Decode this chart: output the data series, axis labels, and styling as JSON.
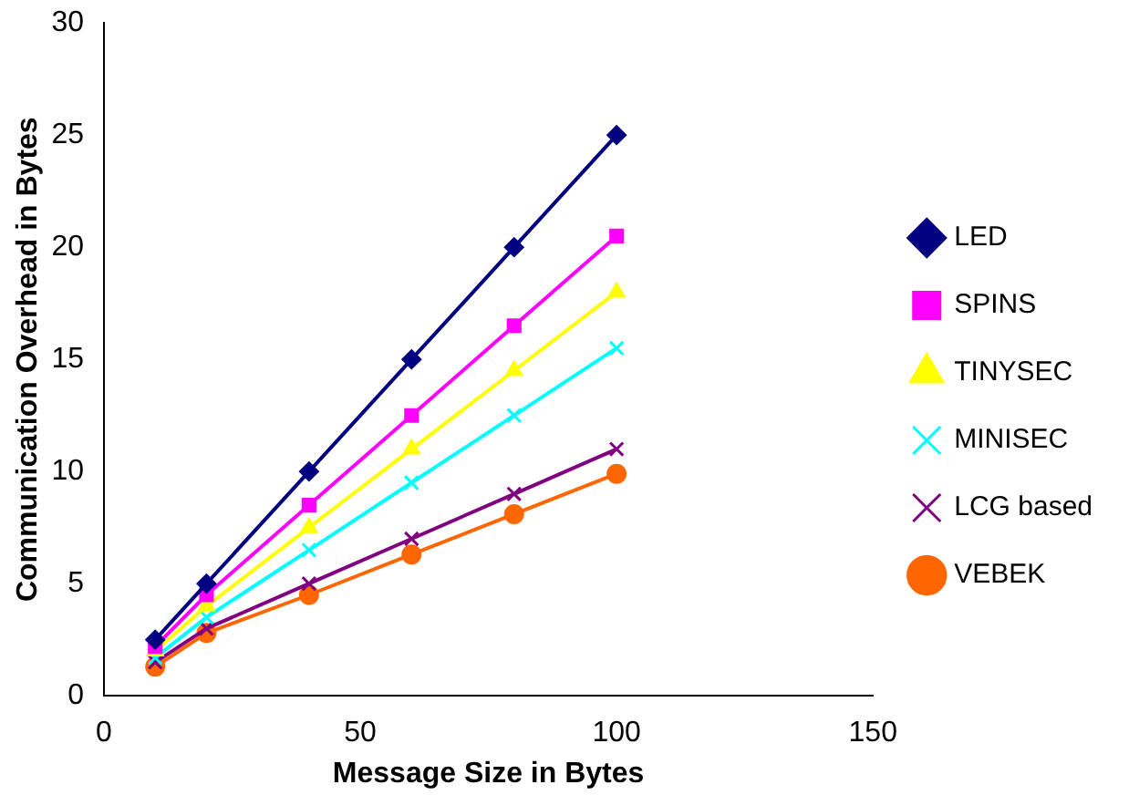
{
  "chart_data": {
    "type": "line",
    "xlabel": "Message Size in Bytes",
    "ylabel": "Communication Overhead in Bytes",
    "x": [
      10,
      20,
      40,
      60,
      80,
      100
    ],
    "xlim": [
      0,
      150
    ],
    "xticks": [
      0,
      50,
      100,
      150
    ],
    "ylim": [
      0,
      30
    ],
    "yticks": [
      0,
      5,
      10,
      15,
      20,
      25,
      30
    ],
    "grid": false,
    "legend": "right",
    "series": [
      {
        "name": "LED",
        "color": "#000080",
        "marker": "diamond",
        "values": [
          2.5,
          5,
          10,
          15,
          20,
          25
        ]
      },
      {
        "name": "SPINS",
        "color": "#ff00ff",
        "marker": "square",
        "values": [
          2.2,
          4.5,
          8.5,
          12.5,
          16.5,
          20.5
        ]
      },
      {
        "name": "TINYSEC",
        "color": "#ffff00",
        "marker": "triangle",
        "values": [
          2,
          4,
          7.5,
          11,
          14.5,
          18
        ]
      },
      {
        "name": "MINISEC",
        "color": "#00ffff",
        "marker": "cross",
        "values": [
          1.7,
          3.5,
          6.5,
          9.5,
          12.5,
          15.5
        ]
      },
      {
        "name": "LCG based",
        "color": "#800080",
        "marker": "cross",
        "values": [
          1.5,
          3,
          5,
          7,
          9,
          11
        ]
      },
      {
        "name": "VEBEK",
        "color": "#ff6600",
        "marker": "circle",
        "values": [
          1.3,
          2.8,
          4.5,
          6.3,
          8.1,
          9.9
        ]
      }
    ]
  }
}
